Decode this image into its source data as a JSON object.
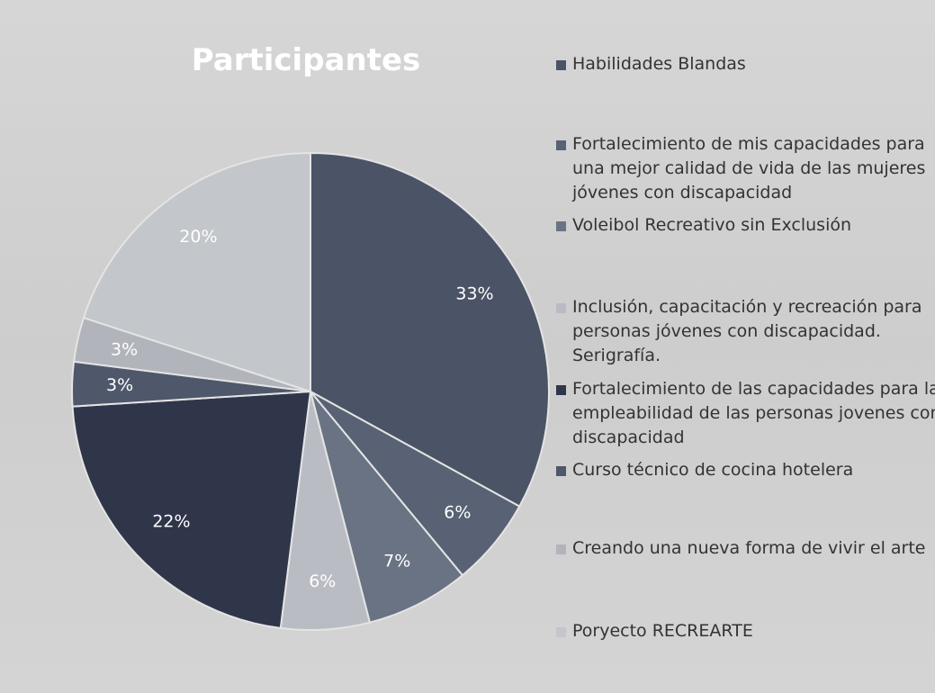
{
  "chart_data": {
    "type": "pie",
    "title": "Participantes",
    "categories": [
      "Habilidades Blandas",
      "Fortalecimiento de mis capacidades para una mejor calidad de vida de las mujeres jóvenes con discapacidad",
      "Voleibol Recreativo sin Exclusión",
      "Inclusión, capacitación y recreación para personas jóvenes con discapacidad. Serigrafía.",
      "Fortalecimiento de las capacidades para la empleabilidad de las personas jovenes con discapacidad",
      "Curso técnico de cocina hotelera",
      "Creando una nueva forma de vivir el arte",
      "Poryecto RECREARTE"
    ],
    "values": [
      33,
      6,
      7,
      6,
      22,
      3,
      3,
      20
    ],
    "value_labels": [
      "33%",
      "6%",
      "7%",
      "6%",
      "22%",
      "3%",
      "3%",
      "20%"
    ],
    "colors": [
      "#4b5466",
      "#586274",
      "#6a7384",
      "#b9bcc3",
      "#2f3649",
      "#4f586a",
      "#b1b4bb",
      "#c3c6cb"
    ],
    "legend": "right"
  }
}
